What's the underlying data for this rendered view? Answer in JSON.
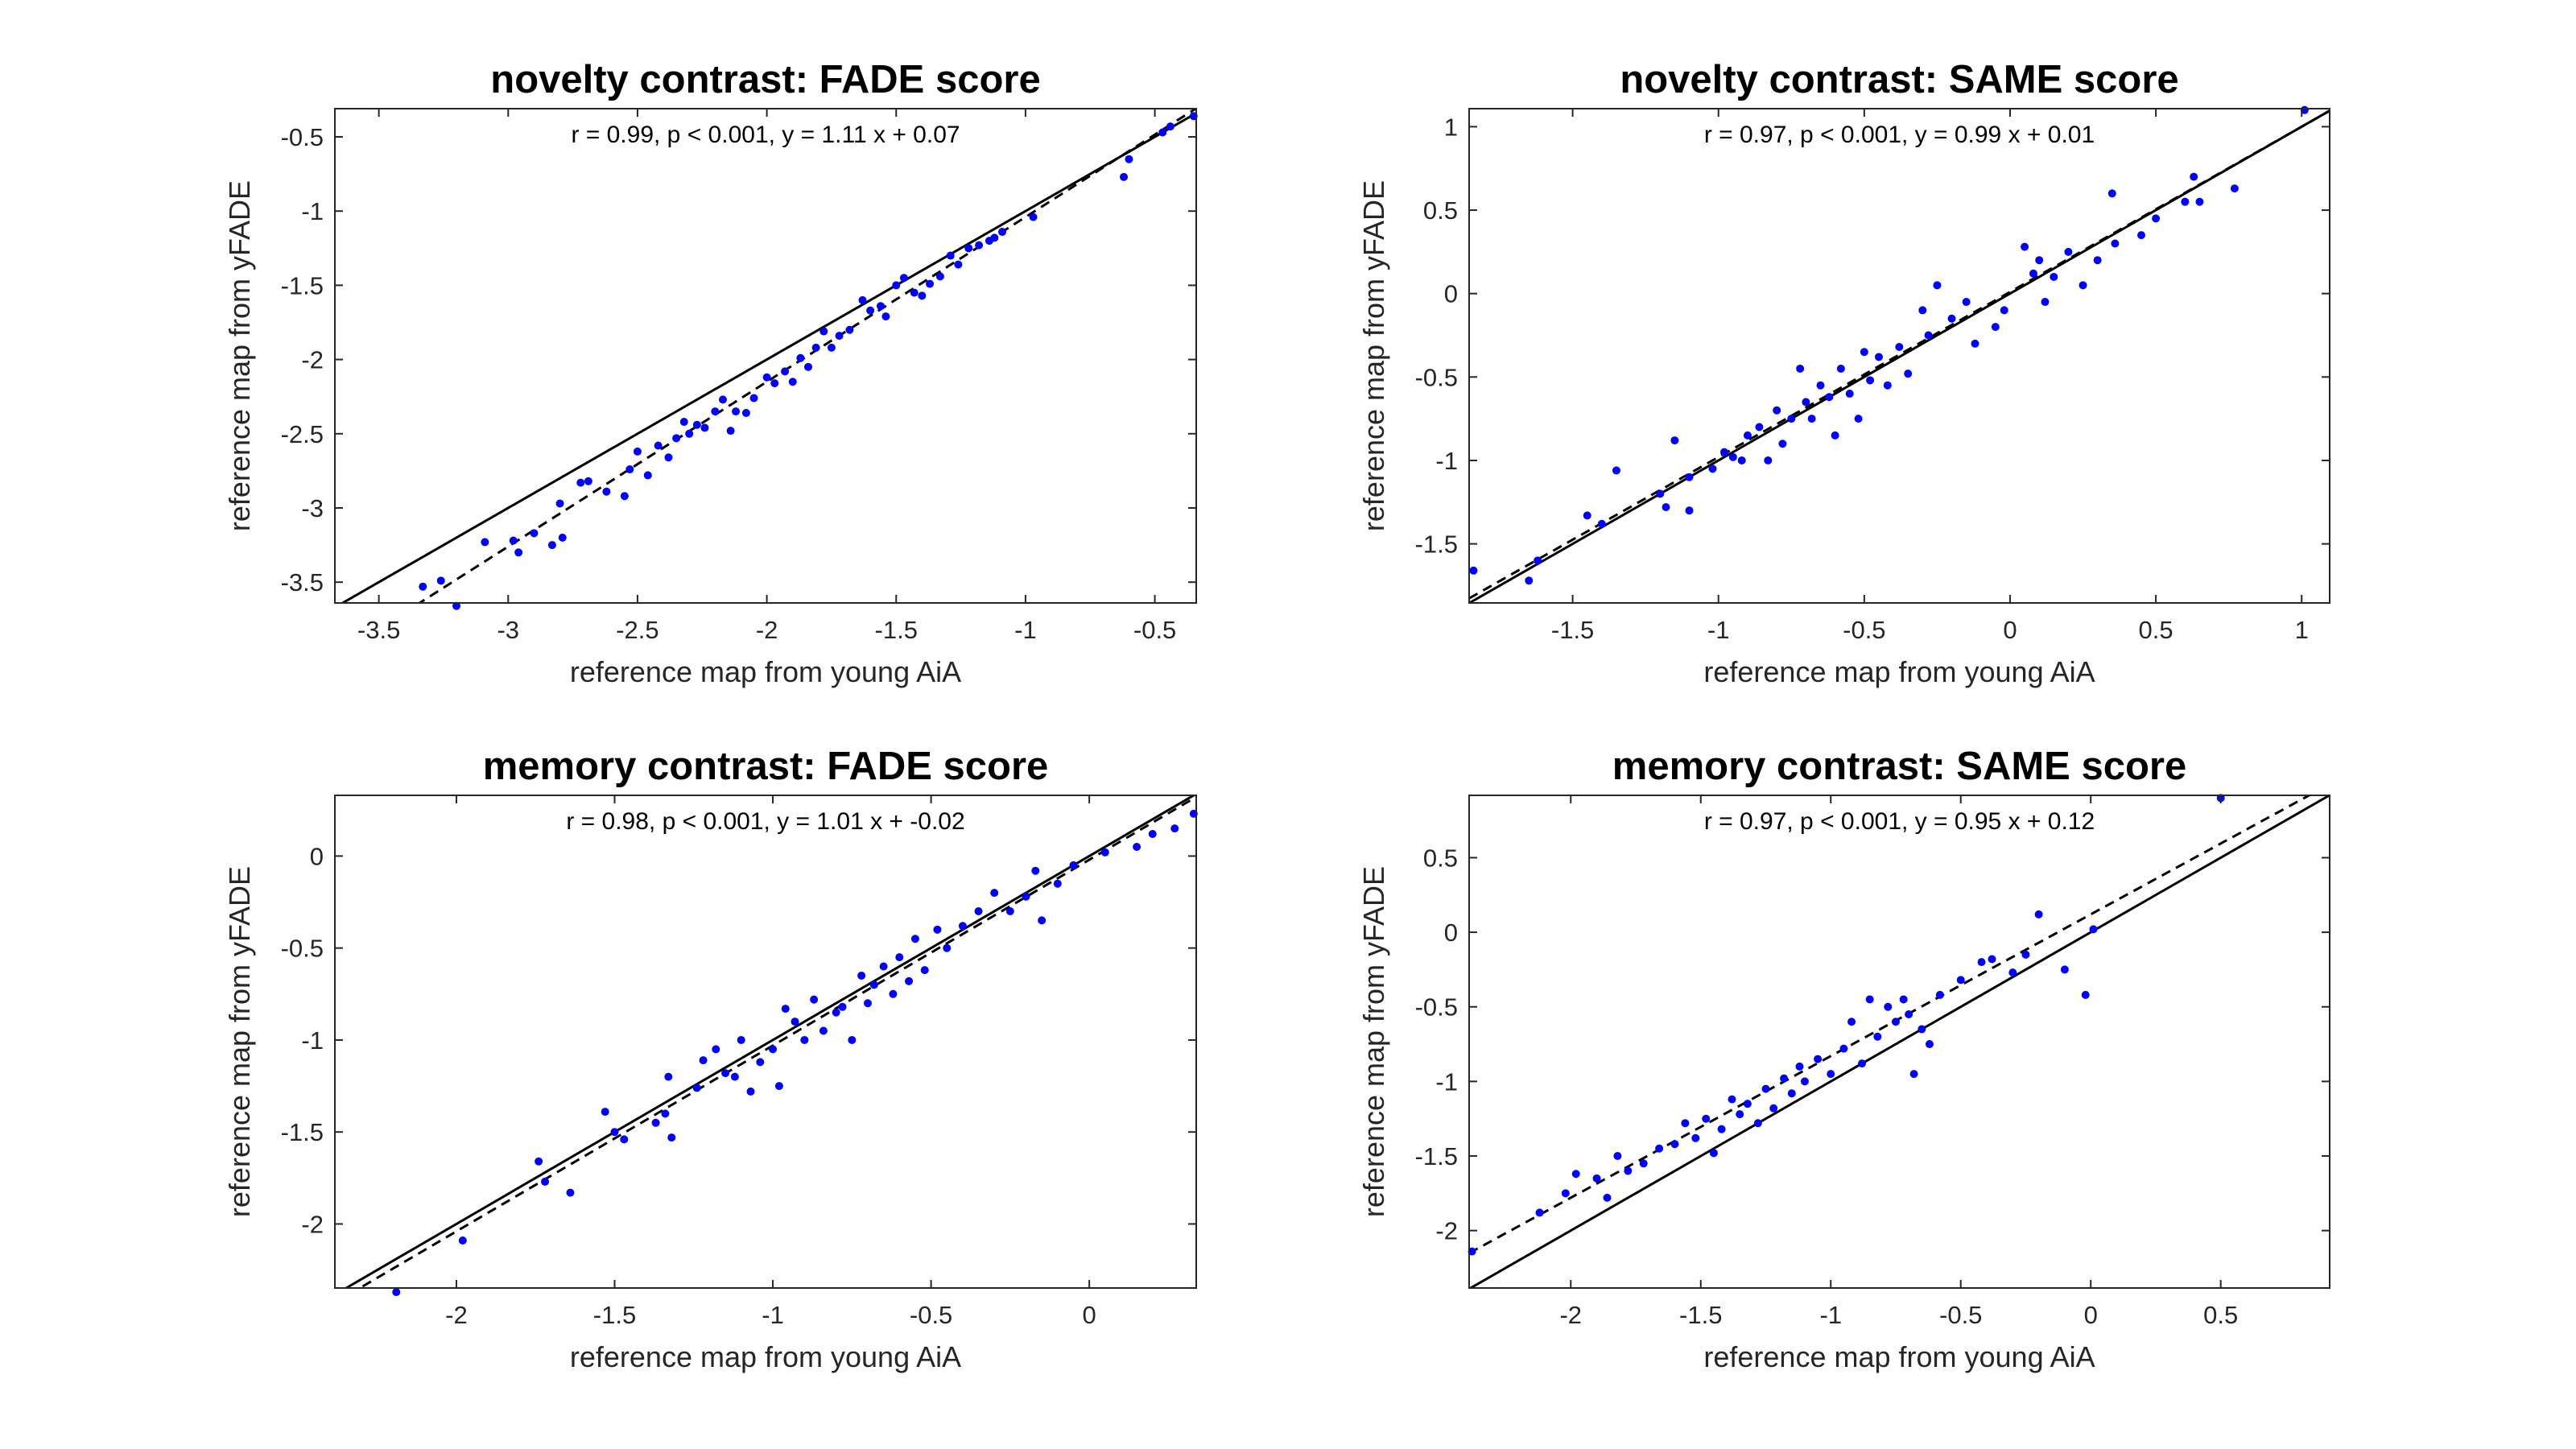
{
  "chart_data": [
    {
      "type": "scatter",
      "title": "novelty contrast: FADE score",
      "annotation": "r = 0.99, p < 0.001, y = 1.11 x + 0.07",
      "xlabel": "reference map from young AiA",
      "ylabel": "reference map from yFADE",
      "color": "#0000ff",
      "xlim": [
        -3.67,
        -0.34
      ],
      "ylim": [
        -3.64,
        -0.31
      ],
      "xticks": [
        -3.5,
        -3,
        -2.5,
        -2,
        -1.5,
        -1,
        -0.5
      ],
      "yticks": [
        -3.5,
        -3,
        -2.5,
        -2,
        -1.5,
        -1,
        -0.5
      ],
      "reference_lines": [
        {
          "slope": 1,
          "intercept": 0,
          "style": "solid"
        },
        {
          "slope": 1.11,
          "intercept": 0.07,
          "style": "dashed"
        }
      ],
      "x": [
        -3.33,
        -3.26,
        -3.2,
        -3.09,
        -2.98,
        -2.96,
        -2.9,
        -2.83,
        -2.79,
        -2.8,
        -2.72,
        -2.69,
        -2.62,
        -2.55,
        -2.53,
        -2.5,
        -2.46,
        -2.42,
        -2.38,
        -2.35,
        -2.32,
        -2.3,
        -2.27,
        -2.24,
        -2.2,
        -2.17,
        -2.14,
        -2.12,
        -2.08,
        -2.05,
        -2.0,
        -1.97,
        -1.93,
        -1.9,
        -1.87,
        -1.84,
        -1.81,
        -1.78,
        -1.75,
        -1.72,
        -1.68,
        -1.63,
        -1.6,
        -1.56,
        -1.54,
        -1.5,
        -1.47,
        -1.43,
        -1.4,
        -1.37,
        -1.33,
        -1.29,
        -1.26,
        -1.22,
        -1.18,
        -1.14,
        -1.12,
        -1.09,
        -0.97,
        -0.62,
        -0.6,
        -0.47,
        -0.44,
        -0.35
      ],
      "values": [
        -3.53,
        -3.49,
        -3.66,
        -3.23,
        -3.22,
        -3.3,
        -3.17,
        -3.25,
        -3.2,
        -2.97,
        -2.83,
        -2.82,
        -2.89,
        -2.92,
        -2.74,
        -2.62,
        -2.78,
        -2.58,
        -2.66,
        -2.53,
        -2.42,
        -2.5,
        -2.44,
        -2.46,
        -2.35,
        -2.27,
        -2.48,
        -2.35,
        -2.36,
        -2.26,
        -2.12,
        -2.16,
        -2.08,
        -2.15,
        -1.99,
        -2.05,
        -1.92,
        -1.81,
        -1.92,
        -1.84,
        -1.8,
        -1.6,
        -1.67,
        -1.64,
        -1.71,
        -1.5,
        -1.45,
        -1.55,
        -1.57,
        -1.49,
        -1.44,
        -1.3,
        -1.36,
        -1.25,
        -1.23,
        -1.2,
        -1.18,
        -1.14,
        -1.04,
        -0.77,
        -0.65,
        -0.47,
        -0.43,
        -0.36
      ]
    },
    {
      "type": "scatter",
      "title": "novelty contrast: SAME score",
      "annotation": "r = 0.97, p < 0.001, y = 0.99 x + 0.01",
      "xlabel": "reference map from young AiA",
      "ylabel": "reference map from yFADE",
      "color": "#0000ff",
      "xlim": [
        -1.855,
        1.096
      ],
      "ylim": [
        -1.854,
        1.108
      ],
      "xticks": [
        -1.5,
        -1,
        -0.5,
        0,
        0.5,
        1
      ],
      "yticks": [
        -1.5,
        -1,
        -0.5,
        0,
        0.5,
        1
      ],
      "reference_lines": [
        {
          "slope": 1,
          "intercept": 0,
          "style": "solid"
        },
        {
          "slope": 0.99,
          "intercept": 0.01,
          "style": "dashed"
        }
      ],
      "x": [
        -1.84,
        -1.65,
        -1.62,
        -1.45,
        -1.4,
        -1.35,
        -1.2,
        -1.18,
        -1.15,
        -1.1,
        -1.1,
        -1.02,
        -0.98,
        -0.95,
        -0.92,
        -0.9,
        -0.86,
        -0.83,
        -0.8,
        -0.78,
        -0.75,
        -0.72,
        -0.7,
        -0.68,
        -0.65,
        -0.62,
        -0.6,
        -0.58,
        -0.55,
        -0.52,
        -0.5,
        -0.48,
        -0.45,
        -0.42,
        -0.38,
        -0.35,
        -0.3,
        -0.28,
        -0.25,
        -0.2,
        -0.15,
        -0.12,
        -0.05,
        -0.02,
        0.05,
        0.08,
        0.1,
        0.12,
        0.15,
        0.2,
        0.25,
        0.3,
        0.35,
        0.36,
        0.45,
        0.5,
        0.6,
        0.63,
        0.65,
        0.77,
        1.01
      ],
      "values": [
        -1.66,
        -1.72,
        -1.6,
        -1.33,
        -1.38,
        -1.06,
        -1.2,
        -1.28,
        -0.88,
        -1.1,
        -1.3,
        -1.05,
        -0.95,
        -0.98,
        -1.0,
        -0.85,
        -0.8,
        -1.0,
        -0.7,
        -0.9,
        -0.75,
        -0.45,
        -0.65,
        -0.75,
        -0.55,
        -0.62,
        -0.85,
        -0.45,
        -0.6,
        -0.75,
        -0.35,
        -0.52,
        -0.38,
        -0.55,
        -0.32,
        -0.48,
        -0.1,
        -0.25,
        0.05,
        -0.15,
        -0.05,
        -0.3,
        -0.2,
        -0.1,
        0.28,
        0.12,
        0.2,
        -0.05,
        0.1,
        0.25,
        0.05,
        0.2,
        0.6,
        0.3,
        0.35,
        0.45,
        0.55,
        0.7,
        0.55,
        0.63,
        1.1
      ]
    },
    {
      "type": "scatter",
      "title": "memory contrast: FADE score",
      "annotation": "r = 0.98, p < 0.001, y = 1.01 x + -0.02",
      "xlabel": "reference map from young AiA",
      "ylabel": "reference map from yFADE",
      "color": "#0000ff",
      "xlim": [
        -2.384,
        0.338
      ],
      "ylim": [
        -2.348,
        0.33
      ],
      "xticks": [
        -2,
        -1.5,
        -1,
        -0.5,
        0
      ],
      "yticks": [
        -2,
        -1.5,
        -1,
        -0.5,
        0
      ],
      "reference_lines": [
        {
          "slope": 1,
          "intercept": 0,
          "style": "solid"
        },
        {
          "slope": 1.01,
          "intercept": -0.02,
          "style": "dashed"
        }
      ],
      "x": [
        -2.19,
        -1.98,
        -1.74,
        -1.72,
        -1.64,
        -1.53,
        -1.5,
        -1.47,
        -1.37,
        -1.34,
        -1.33,
        -1.32,
        -1.24,
        -1.22,
        -1.18,
        -1.15,
        -1.12,
        -1.1,
        -1.07,
        -1.04,
        -1.0,
        -0.98,
        -0.96,
        -0.93,
        -0.9,
        -0.87,
        -0.84,
        -0.8,
        -0.78,
        -0.75,
        -0.72,
        -0.7,
        -0.68,
        -0.65,
        -0.62,
        -0.6,
        -0.57,
        -0.55,
        -0.52,
        -0.48,
        -0.45,
        -0.4,
        -0.35,
        -0.3,
        -0.25,
        -0.2,
        -0.17,
        -0.15,
        -0.1,
        -0.05,
        0.05,
        0.15,
        0.2,
        0.27,
        0.33
      ],
      "values": [
        -2.37,
        -2.09,
        -1.66,
        -1.77,
        -1.83,
        -1.39,
        -1.5,
        -1.54,
        -1.45,
        -1.4,
        -1.2,
        -1.53,
        -1.26,
        -1.11,
        -1.05,
        -1.18,
        -1.2,
        -1.0,
        -1.28,
        -1.12,
        -1.05,
        -1.25,
        -0.83,
        -0.9,
        -1.0,
        -0.78,
        -0.95,
        -0.85,
        -0.82,
        -1.0,
        -0.65,
        -0.8,
        -0.7,
        -0.6,
        -0.75,
        -0.55,
        -0.68,
        -0.45,
        -0.62,
        -0.4,
        -0.5,
        -0.38,
        -0.3,
        -0.2,
        -0.3,
        -0.22,
        -0.08,
        -0.35,
        -0.15,
        -0.05,
        0.02,
        0.05,
        0.12,
        0.15,
        0.23
      ]
    },
    {
      "type": "scatter",
      "title": "memory contrast: SAME score",
      "annotation": "r = 0.97, p < 0.001, y = 0.95 x + 0.12",
      "xlabel": "reference map from young AiA",
      "ylabel": "reference map from yFADE",
      "color": "#0000ff",
      "xlim": [
        -2.391,
        0.919
      ],
      "ylim": [
        -2.385,
        0.918
      ],
      "xticks": [
        -2,
        -1.5,
        -1,
        -0.5,
        0,
        0.5
      ],
      "yticks": [
        -2,
        -1.5,
        -1,
        -0.5,
        0,
        0.5
      ],
      "reference_lines": [
        {
          "slope": 1,
          "intercept": 0,
          "style": "solid"
        },
        {
          "slope": 0.95,
          "intercept": 0.12,
          "style": "dashed"
        }
      ],
      "x": [
        -2.38,
        -2.12,
        -2.02,
        -1.98,
        -1.9,
        -1.86,
        -1.82,
        -1.78,
        -1.72,
        -1.66,
        -1.6,
        -1.56,
        -1.52,
        -1.48,
        -1.45,
        -1.42,
        -1.38,
        -1.35,
        -1.32,
        -1.28,
        -1.25,
        -1.22,
        -1.18,
        -1.15,
        -1.12,
        -1.1,
        -1.05,
        -1.0,
        -0.95,
        -0.92,
        -0.88,
        -0.85,
        -0.82,
        -0.78,
        -0.75,
        -0.72,
        -0.7,
        -0.68,
        -0.65,
        -0.62,
        -0.58,
        -0.5,
        -0.42,
        -0.38,
        -0.3,
        -0.25,
        -0.2,
        -0.1,
        -0.02,
        0.01,
        0.5
      ],
      "values": [
        -2.14,
        -1.88,
        -1.75,
        -1.62,
        -1.65,
        -1.78,
        -1.5,
        -1.6,
        -1.55,
        -1.45,
        -1.42,
        -1.28,
        -1.38,
        -1.25,
        -1.48,
        -1.32,
        -1.12,
        -1.22,
        -1.15,
        -1.28,
        -1.05,
        -1.18,
        -0.98,
        -1.08,
        -0.9,
        -1.0,
        -0.85,
        -0.95,
        -0.78,
        -0.6,
        -0.88,
        -0.45,
        -0.7,
        -0.5,
        -0.6,
        -0.45,
        -0.55,
        -0.95,
        -0.65,
        -0.75,
        -0.42,
        -0.32,
        -0.2,
        -0.18,
        -0.27,
        -0.15,
        0.12,
        -0.25,
        -0.42,
        0.02,
        0.9
      ]
    }
  ]
}
